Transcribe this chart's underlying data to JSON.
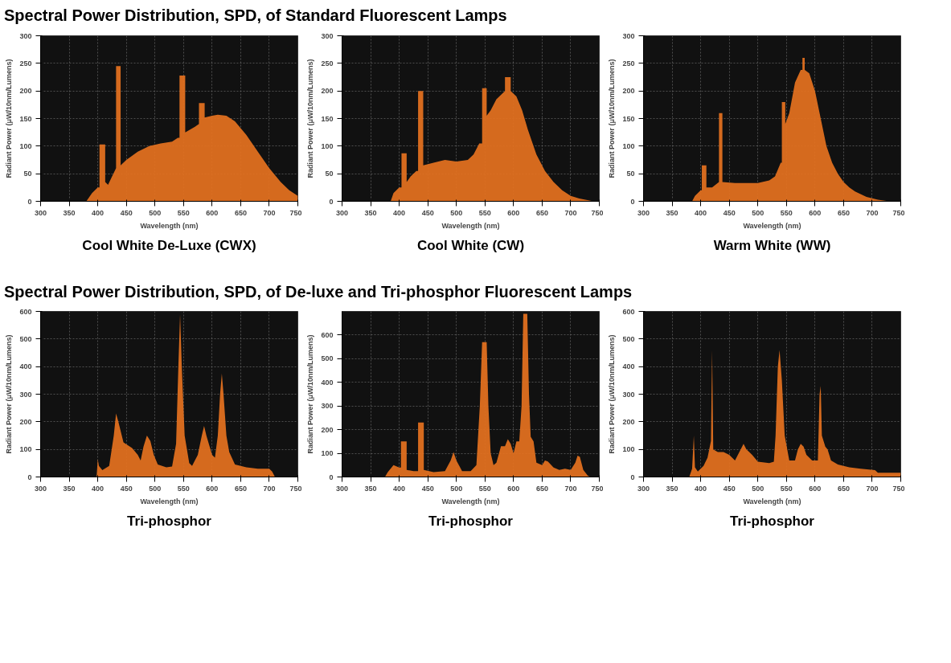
{
  "chart_data": [
    {
      "type": "area",
      "title": "Cool White De-Luxe (CWX)",
      "annotations": [
        "Spectral Power Distribution, SPD, of Standard Fluorescent Lamps"
      ],
      "xlabel": "Wavelength (nm)",
      "ylabel": "Radiant Power (μW/10nm/Lumens)",
      "xlim": [
        300,
        750
      ],
      "xticks": [
        300,
        350,
        400,
        450,
        500,
        550,
        600,
        650,
        700,
        750
      ],
      "ylim": [
        0,
        300
      ],
      "yticks": [
        0,
        50,
        100,
        150,
        200,
        250,
        300
      ],
      "grid": true,
      "series": [
        {
          "color": "#e07020",
          "x": [
            380,
            390,
            400,
            403,
            403,
            413,
            413,
            418,
            425,
            432,
            432,
            440,
            440,
            450,
            470,
            490,
            510,
            530,
            540,
            543,
            543,
            553,
            553,
            570,
            577,
            577,
            587,
            587,
            600,
            610,
            625,
            640,
            660,
            680,
            700,
            720,
            735,
            750
          ],
          "values": [
            0,
            15,
            25,
            25,
            103,
            103,
            35,
            30,
            45,
            60,
            245,
            245,
            65,
            75,
            90,
            100,
            105,
            108,
            115,
            115,
            228,
            228,
            125,
            135,
            140,
            178,
            178,
            152,
            155,
            157,
            155,
            145,
            120,
            90,
            60,
            35,
            20,
            10
          ]
        }
      ]
    },
    {
      "type": "area",
      "title": "Cool White (CW)",
      "xlabel": "Wavelength (nm)",
      "ylabel": "Radiant Power (μW/10nm/Lumens)",
      "xlim": [
        300,
        750
      ],
      "xticks": [
        300,
        350,
        400,
        450,
        500,
        550,
        600,
        650,
        700,
        750
      ],
      "ylim": [
        0,
        300
      ],
      "yticks": [
        0,
        50,
        100,
        150,
        200,
        250,
        300
      ],
      "grid": true,
      "series": [
        {
          "color": "#e07020",
          "x": [
            385,
            390,
            400,
            404,
            404,
            413,
            413,
            420,
            430,
            433,
            433,
            442,
            442,
            460,
            480,
            500,
            520,
            530,
            540,
            545,
            545,
            553,
            553,
            560,
            570,
            585,
            585,
            595,
            595,
            605,
            615,
            625,
            640,
            655,
            670,
            685,
            700,
            715,
            740
          ],
          "values": [
            0,
            15,
            25,
            25,
            87,
            87,
            35,
            45,
            55,
            55,
            200,
            200,
            65,
            70,
            75,
            72,
            75,
            85,
            105,
            105,
            205,
            205,
            155,
            165,
            185,
            200,
            225,
            225,
            200,
            190,
            165,
            130,
            85,
            55,
            35,
            20,
            10,
            5,
            0
          ]
        }
      ]
    },
    {
      "type": "area",
      "title": "Warm White (WW)",
      "xlabel": "Wavelength (nm)",
      "ylabel": "Radiant Power (μW/10nm/Lumens)",
      "xlim": [
        300,
        750
      ],
      "xticks": [
        300,
        350,
        400,
        450,
        500,
        550,
        600,
        650,
        700,
        750
      ],
      "ylim": [
        0,
        300
      ],
      "yticks": [
        0,
        50,
        100,
        150,
        200,
        250,
        300
      ],
      "grid": true,
      "series": [
        {
          "color": "#e07020",
          "x": [
            385,
            390,
            400,
            402,
            402,
            410,
            410,
            420,
            432,
            432,
            438,
            438,
            460,
            500,
            520,
            530,
            540,
            542,
            542,
            548,
            548,
            555,
            565,
            575,
            578,
            578,
            582,
            582,
            590,
            600,
            610,
            620,
            630,
            640,
            650,
            660,
            670,
            690,
            710,
            730
          ],
          "values": [
            0,
            10,
            20,
            20,
            65,
            65,
            25,
            25,
            35,
            160,
            160,
            35,
            33,
            33,
            38,
            45,
            70,
            70,
            180,
            180,
            140,
            160,
            215,
            238,
            238,
            260,
            260,
            238,
            232,
            200,
            150,
            100,
            70,
            50,
            35,
            25,
            18,
            8,
            3,
            0
          ]
        }
      ]
    },
    {
      "type": "area",
      "title": "Tri-phosphor",
      "annotations": [
        "Spectral Power Distribution, SPD, of De-luxe and Tri-phosphor Fluorescent Lamps"
      ],
      "xlabel": "Wavelength (nm)",
      "ylabel": "Radiant Power (μW/10nm/Lumens)",
      "xlim": [
        300,
        750
      ],
      "xticks": [
        300,
        350,
        400,
        450,
        500,
        550,
        600,
        650,
        700,
        750
      ],
      "ylim": [
        0,
        600
      ],
      "yticks": [
        0,
        100,
        200,
        300,
        400,
        500,
        600
      ],
      "grid": true,
      "series": [
        {
          "color": "#e07020",
          "x": [
            398,
            400,
            402,
            408,
            420,
            428,
            432,
            436,
            445,
            460,
            470,
            475,
            480,
            486,
            492,
            498,
            505,
            520,
            530,
            537,
            541,
            544,
            547,
            552,
            560,
            565,
            575,
            582,
            586,
            590,
            600,
            605,
            610,
            614,
            617,
            620,
            625,
            630,
            640,
            650,
            660,
            680,
            700,
            705,
            710
          ],
          "values": [
            0,
            65,
            40,
            25,
            40,
            150,
            230,
            200,
            125,
            105,
            80,
            60,
            110,
            150,
            130,
            80,
            45,
            35,
            38,
            120,
            400,
            590,
            400,
            150,
            50,
            40,
            80,
            150,
            185,
            150,
            80,
            70,
            150,
            300,
            375,
            300,
            150,
            90,
            45,
            40,
            35,
            30,
            30,
            20,
            0
          ]
        }
      ]
    },
    {
      "type": "area",
      "title": "Tri-phosphor",
      "xlabel": "Wavelength (nm)",
      "ylabel": "Radiant Power (μW/10nm/Lumens)",
      "xlim": [
        300,
        750
      ],
      "xticks": [
        300,
        350,
        400,
        450,
        500,
        550,
        600,
        650,
        700,
        750
      ],
      "ylim": [
        0,
        700
      ],
      "yticks": [
        0,
        100,
        200,
        300,
        400,
        500,
        600
      ],
      "grid": true,
      "series": [
        {
          "color": "#e07020",
          "x": [
            375,
            380,
            390,
            400,
            403,
            403,
            413,
            413,
            425,
            433,
            433,
            443,
            443,
            460,
            480,
            490,
            495,
            500,
            510,
            525,
            535,
            541,
            545,
            553,
            556,
            560,
            565,
            570,
            578,
            585,
            590,
            595,
            600,
            605,
            610,
            614,
            617,
            624,
            627,
            630,
            635,
            640,
            650,
            655,
            660,
            670,
            680,
            690,
            700,
            708,
            712,
            716,
            722,
            730,
            735
          ],
          "values": [
            0,
            20,
            50,
            40,
            40,
            150,
            150,
            30,
            25,
            25,
            230,
            230,
            30,
            20,
            25,
            70,
            105,
            70,
            25,
            25,
            50,
            300,
            570,
            570,
            300,
            100,
            50,
            60,
            130,
            130,
            160,
            140,
            100,
            150,
            150,
            300,
            690,
            690,
            350,
            170,
            150,
            60,
            50,
            70,
            65,
            40,
            30,
            35,
            30,
            60,
            90,
            85,
            30,
            5,
            0
          ]
        }
      ]
    },
    {
      "type": "area",
      "title": "Tri-phosphor",
      "xlabel": "Wavelength (nm)",
      "ylabel": "Radiant Power (μW/10nm/Lumens)",
      "xlim": [
        300,
        750
      ],
      "xticks": [
        300,
        350,
        400,
        450,
        500,
        550,
        600,
        650,
        700,
        750
      ],
      "ylim": [
        0,
        600
      ],
      "yticks": [
        0,
        100,
        200,
        300,
        400,
        500,
        600
      ],
      "grid": true,
      "series": [
        {
          "color": "#e07020",
          "x": [
            380,
            385,
            388,
            390,
            395,
            405,
            412,
            418,
            420,
            422,
            430,
            440,
            450,
            460,
            470,
            475,
            480,
            485,
            490,
            500,
            520,
            528,
            531,
            535,
            538,
            542,
            547,
            555,
            565,
            570,
            575,
            580,
            585,
            595,
            605,
            608,
            610,
            612,
            618,
            622,
            628,
            640,
            660,
            680,
            705,
            710,
            750
          ],
          "values": [
            0,
            30,
            150,
            35,
            20,
            40,
            70,
            130,
            460,
            100,
            90,
            90,
            80,
            60,
            100,
            120,
            100,
            90,
            80,
            55,
            50,
            55,
            150,
            400,
            460,
            350,
            150,
            60,
            60,
            100,
            120,
            110,
            80,
            60,
            60,
            300,
            330,
            150,
            110,
            100,
            60,
            45,
            35,
            30,
            25,
            15,
            15
          ]
        }
      ]
    }
  ]
}
